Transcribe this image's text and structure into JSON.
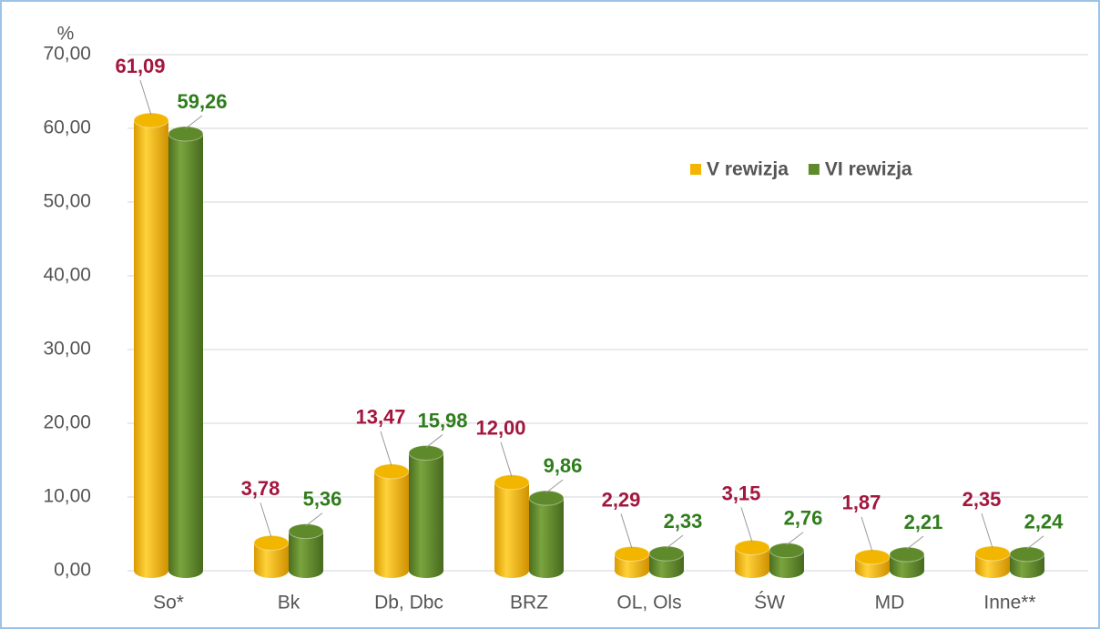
{
  "chart_data": {
    "type": "bar",
    "y_label": "%",
    "categories": [
      "So*",
      "Bk",
      "Db, Dbc",
      "BRZ",
      "OL, Ols",
      "ŚW",
      "MD",
      "Inne**"
    ],
    "series": [
      {
        "name": "V rewizja",
        "color": "#f2b600",
        "label_color": "#a3173e",
        "values": [
          61.09,
          3.78,
          13.47,
          12.0,
          2.29,
          3.15,
          1.87,
          2.35
        ],
        "value_labels": [
          "61,09",
          "3,78",
          "13,47",
          "12,00",
          "2,29",
          "3,15",
          "1,87",
          "2,35"
        ]
      },
      {
        "name": "VI rewizja",
        "color": "#5f8a2c",
        "label_color": "#2f7d1c",
        "values": [
          59.26,
          5.36,
          15.98,
          9.86,
          2.33,
          2.76,
          2.21,
          2.24
        ],
        "value_labels": [
          "59,26",
          "5,36",
          "15,98",
          "9,86",
          "2,33",
          "2,76",
          "2,21",
          "2,24"
        ]
      }
    ],
    "ylim": [
      0,
      70
    ],
    "yticks": [
      {
        "value": 0,
        "label": "0,00"
      },
      {
        "value": 10,
        "label": "10,00"
      },
      {
        "value": 20,
        "label": "20,00"
      },
      {
        "value": 30,
        "label": "30,00"
      },
      {
        "value": 40,
        "label": "40,00"
      },
      {
        "value": 50,
        "label": "50,00"
      },
      {
        "value": 60,
        "label": "60,00"
      },
      {
        "value": 70,
        "label": "70,00"
      }
    ],
    "grid": true,
    "legend": "top-right"
  }
}
